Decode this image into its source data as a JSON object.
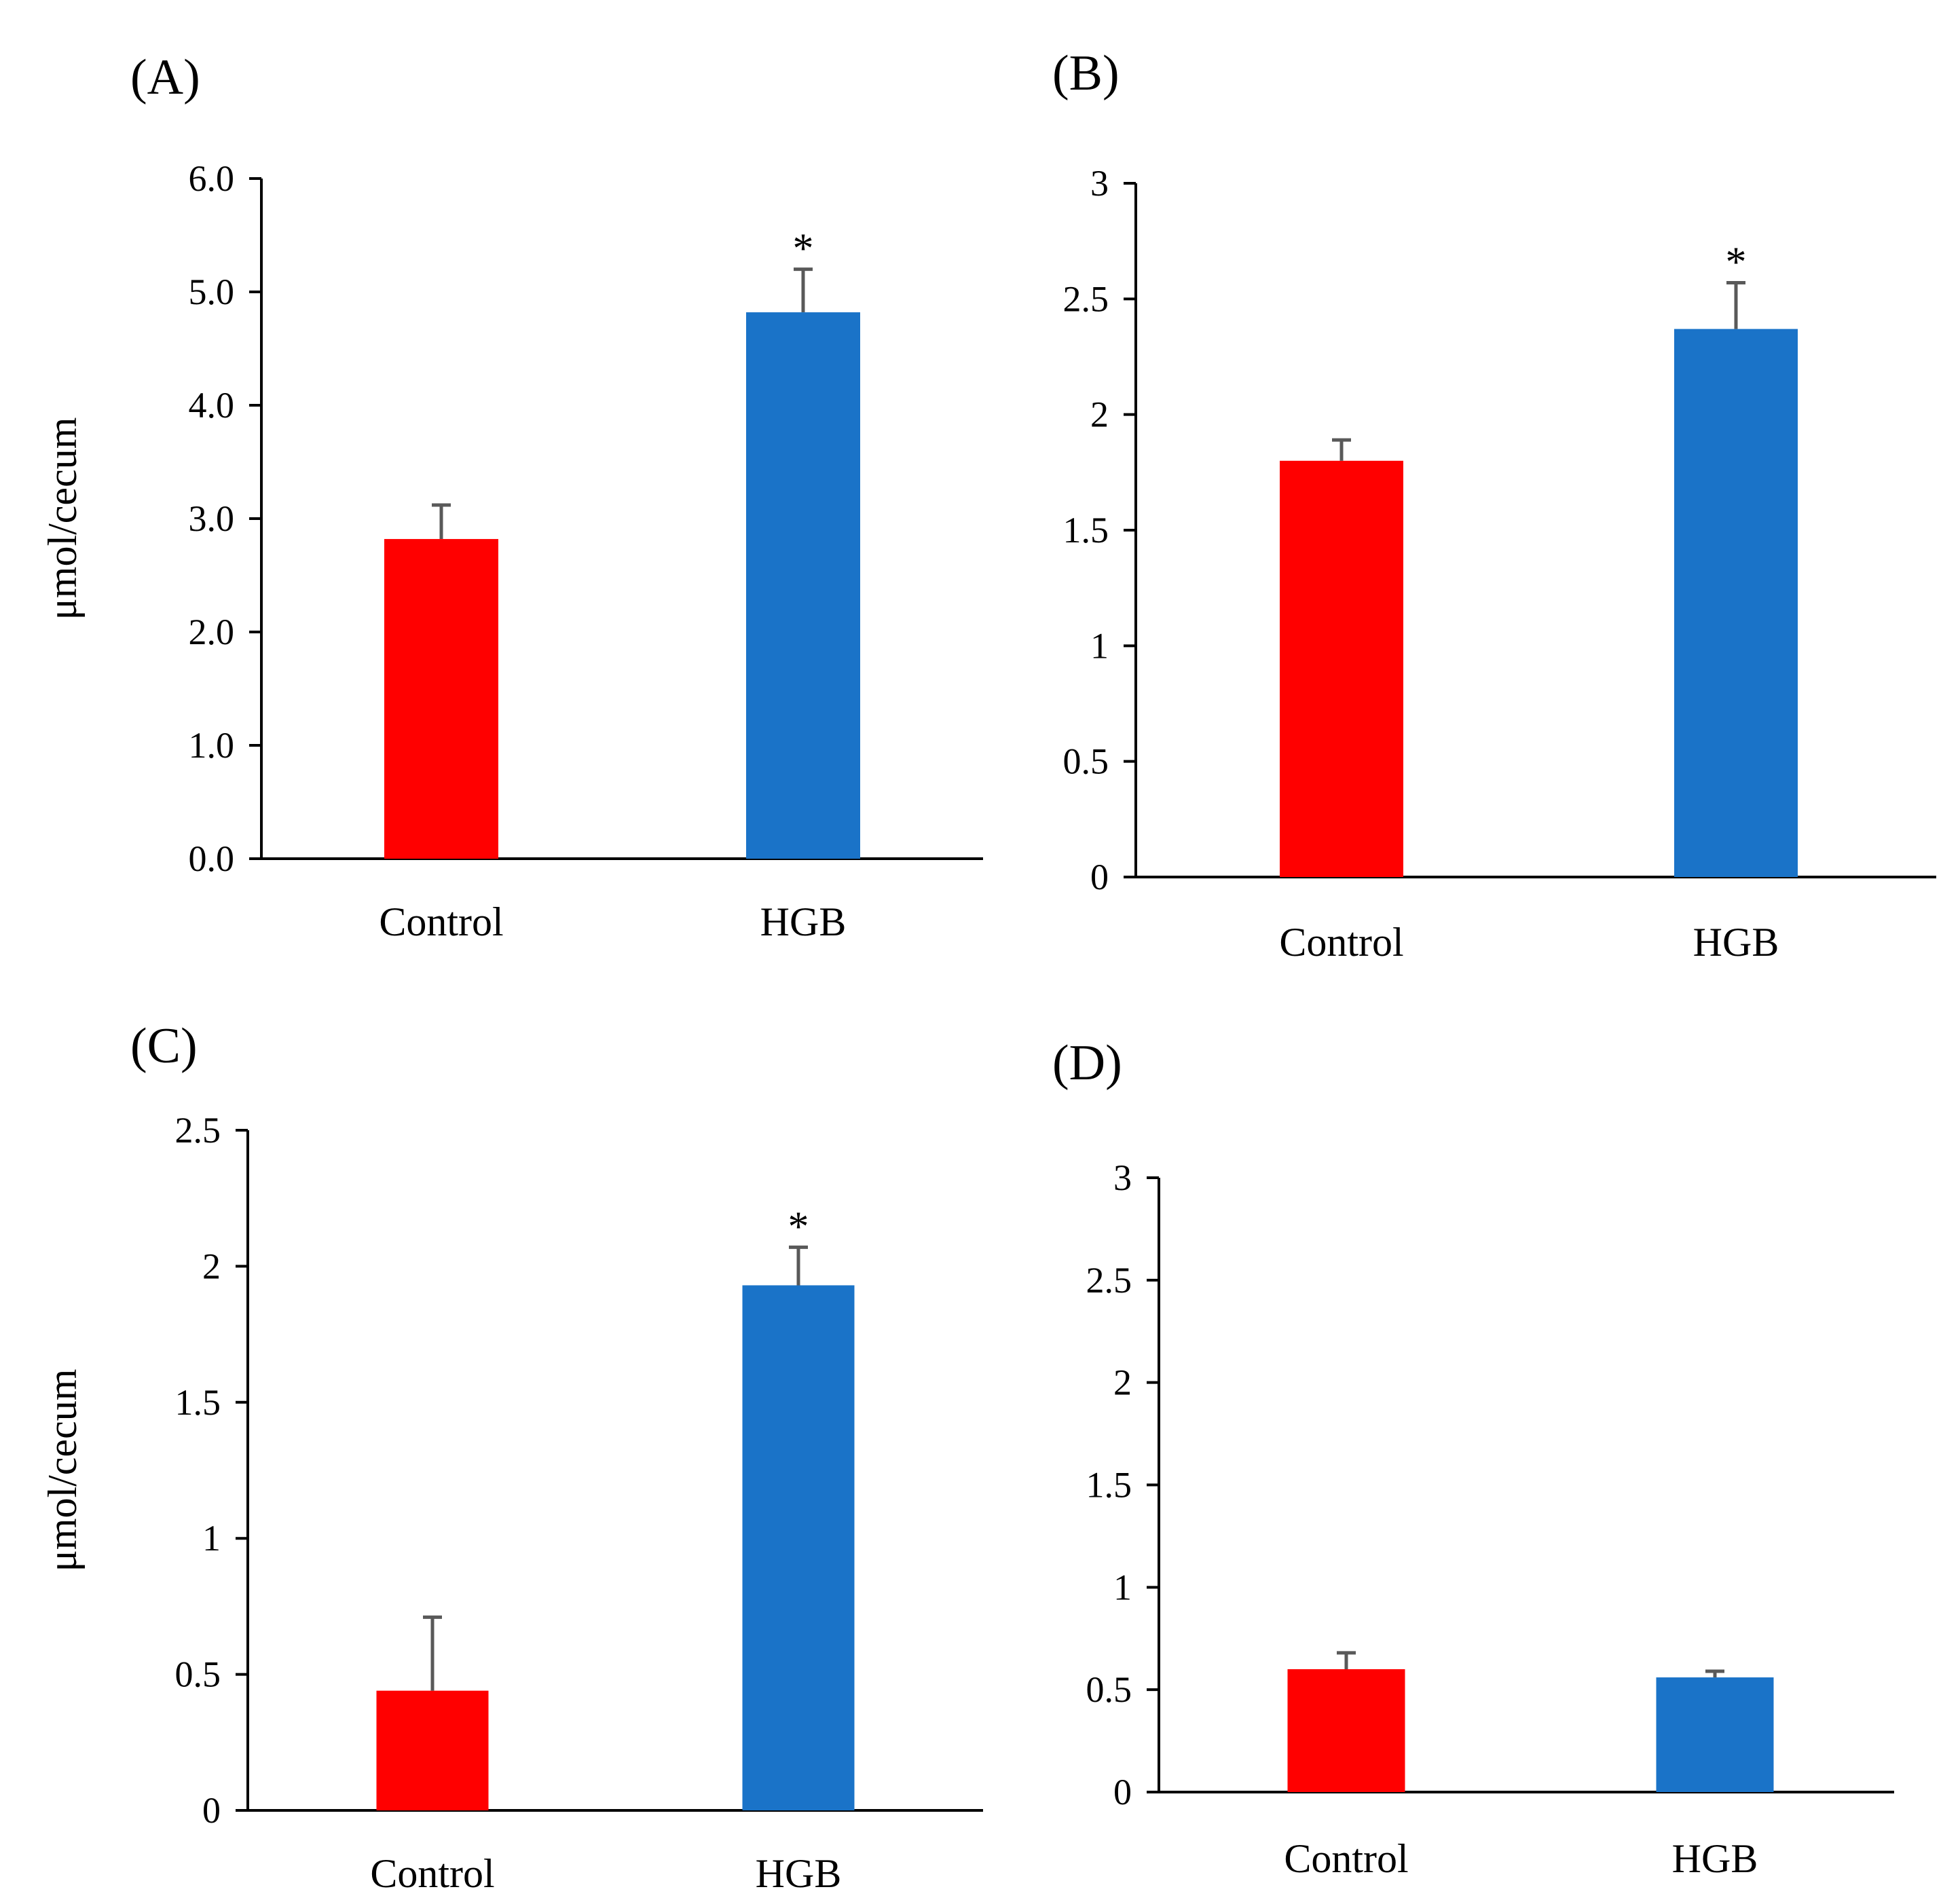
{
  "colors": {
    "control": "#ff0000",
    "hgb": "#1a73c8",
    "axis": "#000000",
    "error": "#595959"
  },
  "chart_data": [
    {
      "type": "bar",
      "panel": "(A)",
      "categories": [
        "Control",
        "HGB"
      ],
      "values": [
        2.82,
        4.82
      ],
      "errors": [
        0.3,
        0.38
      ],
      "significance": [
        "",
        "*"
      ],
      "ylabel": "μmol/cecum",
      "ylim": [
        0,
        6
      ],
      "yticks": [
        "0.0",
        "1.0",
        "2.0",
        "3.0",
        "4.0",
        "5.0",
        "6.0"
      ]
    },
    {
      "type": "bar",
      "panel": "(B)",
      "categories": [
        "Control",
        "HGB"
      ],
      "values": [
        1.8,
        2.37
      ],
      "errors": [
        0.09,
        0.2
      ],
      "significance": [
        "",
        "*"
      ],
      "ylabel": "",
      "ylim": [
        0,
        3
      ],
      "yticks": [
        "0",
        "0.5",
        "1",
        "1.5",
        "2",
        "2.5",
        "3"
      ]
    },
    {
      "type": "bar",
      "panel": "(C)",
      "categories": [
        "Control",
        "HGB"
      ],
      "values": [
        0.44,
        1.93
      ],
      "errors": [
        0.27,
        0.14
      ],
      "significance": [
        "",
        "*"
      ],
      "ylabel": "μmol/cecum",
      "ylim": [
        0,
        2.5
      ],
      "yticks": [
        "0",
        "0.5",
        "1",
        "1.5",
        "2",
        "2.5"
      ]
    },
    {
      "type": "bar",
      "panel": "(D)",
      "categories": [
        "Control",
        "HGB"
      ],
      "values": [
        0.6,
        0.56
      ],
      "errors": [
        0.08,
        0.03
      ],
      "significance": [
        "",
        ""
      ],
      "ylabel": "",
      "ylim": [
        0,
        3
      ],
      "yticks": [
        "0",
        "0.5",
        "1",
        "1.5",
        "2",
        "2.5",
        "3"
      ]
    }
  ]
}
